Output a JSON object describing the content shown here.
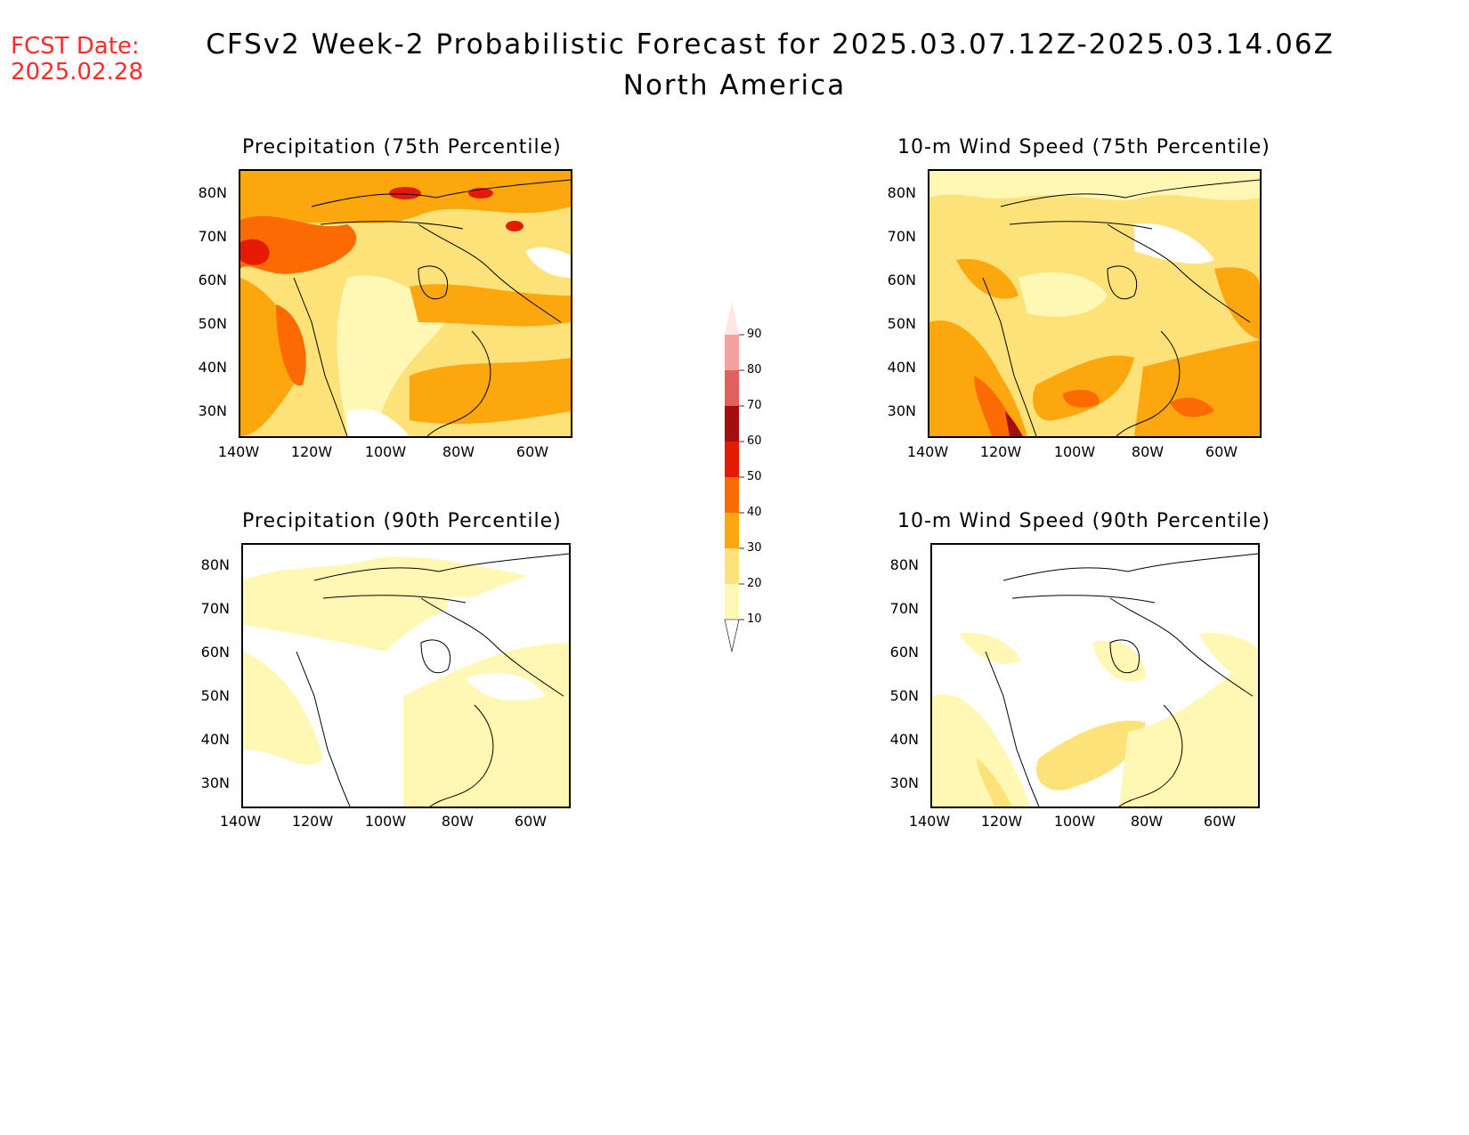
{
  "fcst_date": {
    "label": "FCST Date:",
    "value": "2025.02.28"
  },
  "title": {
    "main": "CFSv2 Week-2 Probabilistic Forecast for 2025.03.07.12Z-2025.03.14.06Z",
    "region": "North America"
  },
  "panels": [
    {
      "title": "Precipitation (75th Percentile)"
    },
    {
      "title": "10-m Wind Speed (75th Percentile)"
    },
    {
      "title": "Precipitation (90th Percentile)"
    },
    {
      "title": "10-m Wind Speed (90th Percentile)"
    }
  ],
  "axes": {
    "lat_labels": [
      "80N",
      "70N",
      "60N",
      "50N",
      "40N",
      "30N"
    ],
    "lon_labels": [
      "140W",
      "120W",
      "100W",
      "80W",
      "60W"
    ]
  },
  "colorbar": {
    "levels": [
      "10",
      "20",
      "30",
      "40",
      "50",
      "60",
      "70",
      "80",
      "90"
    ],
    "colors": [
      "#fff8b4",
      "#fde27a",
      "#fca70e",
      "#fc6a03",
      "#e41a05",
      "#a50e0e",
      "#e06060",
      "#f5a0a0",
      "#fde6e6"
    ]
  }
}
